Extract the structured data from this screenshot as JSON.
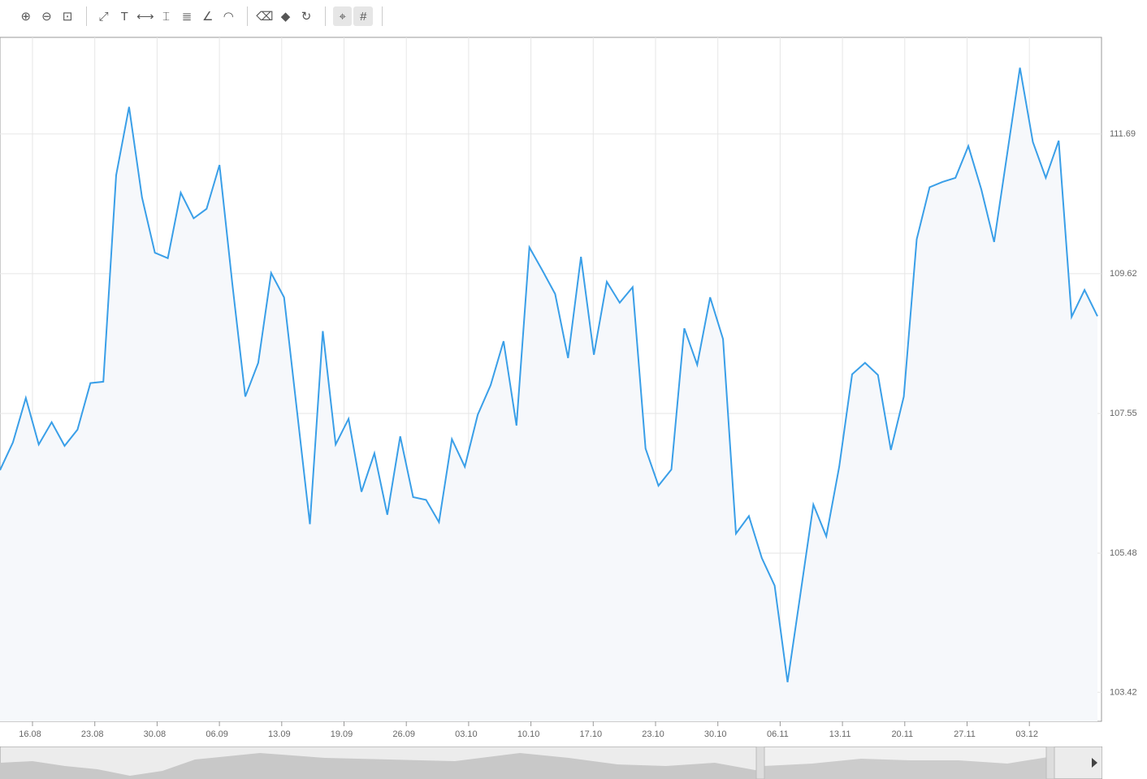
{
  "toolbar": {
    "items": [
      {
        "icon": "zoom-in-icon",
        "glyph": "⊕"
      },
      {
        "icon": "zoom-out-icon",
        "glyph": "⊖"
      },
      {
        "icon": "zoom-reset-icon",
        "glyph": "⊡"
      },
      {
        "sep": true
      },
      {
        "icon": "trend-line-icon",
        "glyph": "⤢"
      },
      {
        "icon": "text-icon",
        "glyph": "T"
      },
      {
        "icon": "horizontal-line-icon",
        "glyph": "⟷"
      },
      {
        "icon": "vertical-line-icon",
        "glyph": "⌶"
      },
      {
        "icon": "fibonacci-retracement-icon",
        "glyph": "≣"
      },
      {
        "icon": "fibonacci-fan-icon",
        "glyph": "∠"
      },
      {
        "icon": "fibonacci-arc-icon",
        "glyph": "◠"
      },
      {
        "sep": true
      },
      {
        "icon": "eraser-icon",
        "glyph": "⌫"
      },
      {
        "icon": "erase-all-icon",
        "glyph": "◆"
      },
      {
        "icon": "refresh-icon",
        "glyph": "↻"
      },
      {
        "sep": true
      },
      {
        "icon": "crosshair-icon",
        "glyph": "⌖",
        "active": true
      },
      {
        "icon": "grid-icon",
        "glyph": "#",
        "active": true
      },
      {
        "sep": true
      }
    ]
  },
  "chart_data": {
    "type": "area",
    "line_color": "#3a9fe8",
    "fill_color": "#f6f8fb",
    "grid": true,
    "y_axis_position": "right",
    "ylim": [
      102.99,
      113.12
    ],
    "yticks": [
      "111.69",
      "109.62",
      "107.55",
      "105.48",
      "103.42"
    ],
    "xticks": [
      "16.08",
      "23.08",
      "30.08",
      "06.09",
      "13.09",
      "19.09",
      "26.09",
      "03.10",
      "10.10",
      "17.10",
      "23.10",
      "30.10",
      "06.11",
      "13.11",
      "20.11",
      "27.11",
      "03.12"
    ],
    "values": [
      106.71,
      107.12,
      107.78,
      107.09,
      107.42,
      107.07,
      107.31,
      108.0,
      108.02,
      111.08,
      112.09,
      110.75,
      109.93,
      109.85,
      110.82,
      110.44,
      110.58,
      111.23,
      109.46,
      107.8,
      108.3,
      109.63,
      109.27,
      107.59,
      105.91,
      108.77,
      107.09,
      107.47,
      106.39,
      106.96,
      106.05,
      107.21,
      106.31,
      106.27,
      105.94,
      107.17,
      106.76,
      107.53,
      107.97,
      108.62,
      107.37,
      110.01,
      109.67,
      109.32,
      108.37,
      109.87,
      108.42,
      109.5,
      109.19,
      109.42,
      107.03,
      106.48,
      106.72,
      108.81,
      108.27,
      109.27,
      108.65,
      105.77,
      106.03,
      105.41,
      105.0,
      103.57,
      104.88,
      106.2,
      105.73,
      106.76,
      108.13,
      108.3,
      108.12,
      107.01,
      107.8,
      110.13,
      110.9,
      110.98,
      111.04,
      111.51,
      110.87,
      110.09,
      111.38,
      112.67,
      111.57,
      111.04,
      111.59,
      108.98,
      109.38,
      108.99
    ]
  }
}
